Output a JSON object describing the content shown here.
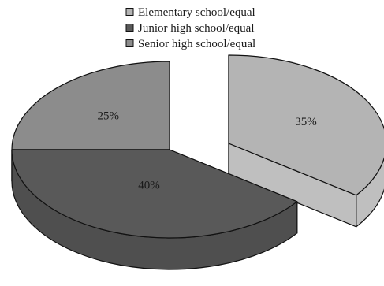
{
  "chart_data": {
    "type": "pie",
    "style": "3d-exploded",
    "categories": [
      "Elementary school/equal",
      "Junior high school/equal",
      "Senior high school/equal"
    ],
    "values": [
      35,
      40,
      25
    ],
    "data_labels": [
      "35%",
      "40%",
      "25%"
    ],
    "colors": [
      "#b4b4b4",
      "#595959",
      "#8c8c8c"
    ],
    "side_colors": [
      "#bfbfbf",
      "#4f4f4f",
      "#808080"
    ],
    "legend_position": "top-center",
    "title": ""
  }
}
